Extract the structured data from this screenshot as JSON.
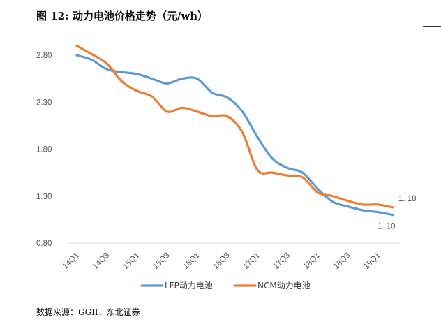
{
  "header": {
    "title": "图  12:  动力电池价格走势（元/wh）"
  },
  "footer": {
    "source": "数据来源：GGII，东北证券"
  },
  "colors": {
    "lfp": "#5B9BD5",
    "ncm": "#ED7D31",
    "axis": "#d9d9d9"
  },
  "chart_data": {
    "type": "line",
    "title": "动力电池价格走势（元/wh）",
    "xlabel": "",
    "ylabel": "",
    "ylim": [
      0.8,
      2.8
    ],
    "yticks": [
      "0.80",
      "1.30",
      "1.80",
      "2.30",
      "2.80"
    ],
    "yticks_values": [
      0.8,
      1.3,
      1.8,
      2.3,
      2.8
    ],
    "x": [
      "14Q1",
      "14Q2",
      "14Q3",
      "14Q4",
      "15Q1",
      "15Q2",
      "15Q3",
      "15Q4",
      "16Q1",
      "16Q2",
      "16Q3",
      "16Q4",
      "17Q1",
      "17Q2",
      "17Q3",
      "17Q4",
      "18Q1",
      "18Q2",
      "18Q3",
      "18Q4",
      "19Q1",
      "19Q2"
    ],
    "xtick_labels": [
      "14Q1",
      "14Q3",
      "15Q1",
      "15Q3",
      "16Q1",
      "16Q3",
      "17Q1",
      "17Q3",
      "18Q1",
      "18Q3",
      "19Q1"
    ],
    "legend_position": "bottom",
    "series": [
      {
        "name": "LFP动力电池",
        "values": [
          2.8,
          2.75,
          2.65,
          2.62,
          2.6,
          2.55,
          2.5,
          2.55,
          2.55,
          2.4,
          2.35,
          2.2,
          1.93,
          1.7,
          1.6,
          1.55,
          1.38,
          1.24,
          1.19,
          1.15,
          1.13,
          1.1
        ],
        "end_label": "1.10"
      },
      {
        "name": "NCM动力电池",
        "values": [
          2.9,
          2.81,
          2.71,
          2.52,
          2.42,
          2.36,
          2.2,
          2.24,
          2.2,
          2.15,
          2.15,
          1.98,
          1.58,
          1.55,
          1.52,
          1.5,
          1.34,
          1.3,
          1.25,
          1.21,
          1.21,
          1.18
        ],
        "end_label": "1.18"
      }
    ]
  }
}
